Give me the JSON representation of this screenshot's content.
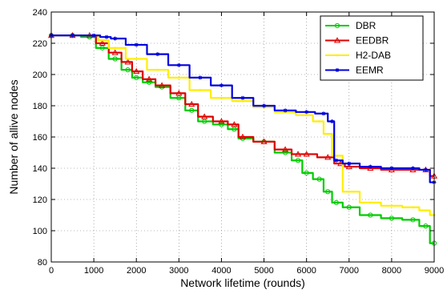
{
  "chart_data": {
    "type": "line",
    "xlabel": "Network lifetime (rounds)",
    "ylabel": "Number of allive nodes",
    "xlim": [
      0,
      9000
    ],
    "ylim": [
      80,
      240
    ],
    "xticks": [
      0,
      1000,
      2000,
      3000,
      4000,
      5000,
      6000,
      7000,
      8000,
      9000
    ],
    "yticks": [
      80,
      100,
      120,
      140,
      160,
      180,
      200,
      220,
      240
    ],
    "grid": "dotted",
    "legend_position": "top-right",
    "series": [
      {
        "name": "DBR",
        "color": "#00cc00",
        "marker": "circle",
        "x": [
          0,
          500,
          900,
          1200,
          1500,
          1800,
          2000,
          2300,
          2600,
          3000,
          3300,
          3600,
          4000,
          4300,
          4500,
          5000,
          5500,
          5800,
          6000,
          6300,
          6500,
          6700,
          7000,
          7500,
          8000,
          8500,
          8800,
          9000
        ],
        "y": [
          225,
          225,
          224,
          217,
          210,
          203,
          198,
          195,
          192,
          185,
          177,
          170,
          168,
          165,
          159,
          157,
          150,
          145,
          137,
          133,
          125,
          118,
          115,
          110,
          108,
          107,
          103,
          92
        ]
      },
      {
        "name": "EEDBR",
        "color": "#dd0000",
        "marker": "triangle",
        "x": [
          0,
          500,
          900,
          1200,
          1500,
          1800,
          2000,
          2300,
          2600,
          3000,
          3300,
          3600,
          4000,
          4300,
          4500,
          5000,
          5500,
          5800,
          6000,
          6500,
          6800,
          7000,
          7500,
          8000,
          8500,
          8800,
          9000
        ],
        "y": [
          225,
          225,
          225,
          220,
          214,
          208,
          202,
          197,
          193,
          188,
          181,
          173,
          170,
          168,
          160,
          157,
          152,
          149,
          149,
          147,
          143,
          141,
          140,
          139,
          139,
          139,
          135
        ]
      },
      {
        "name": "H2-DAB",
        "color": "#ffee00",
        "marker": "point",
        "x": [
          0,
          500,
          1000,
          1200,
          1500,
          2000,
          2500,
          3000,
          3500,
          4000,
          4500,
          5000,
          5500,
          6000,
          6300,
          6500,
          6700,
          7000,
          7500,
          8000,
          8500,
          8800,
          9000
        ],
        "y": [
          225,
          225,
          225,
          222,
          217,
          210,
          203,
          198,
          190,
          185,
          183,
          179,
          176,
          174,
          170,
          162,
          148,
          125,
          118,
          116,
          115,
          113,
          110
        ]
      },
      {
        "name": "EEMR",
        "color": "#0000dd",
        "marker": "star",
        "x": [
          0,
          500,
          1000,
          1300,
          1500,
          2000,
          2500,
          3000,
          3500,
          4000,
          4500,
          5000,
          5500,
          6000,
          6400,
          6600,
          6700,
          7000,
          7500,
          8000,
          8500,
          8800,
          9000
        ],
        "y": [
          225,
          225,
          225,
          224,
          223,
          219,
          213,
          206,
          198,
          193,
          185,
          180,
          177,
          176,
          175,
          170,
          145,
          143,
          141,
          140,
          140,
          139,
          131
        ]
      }
    ]
  }
}
